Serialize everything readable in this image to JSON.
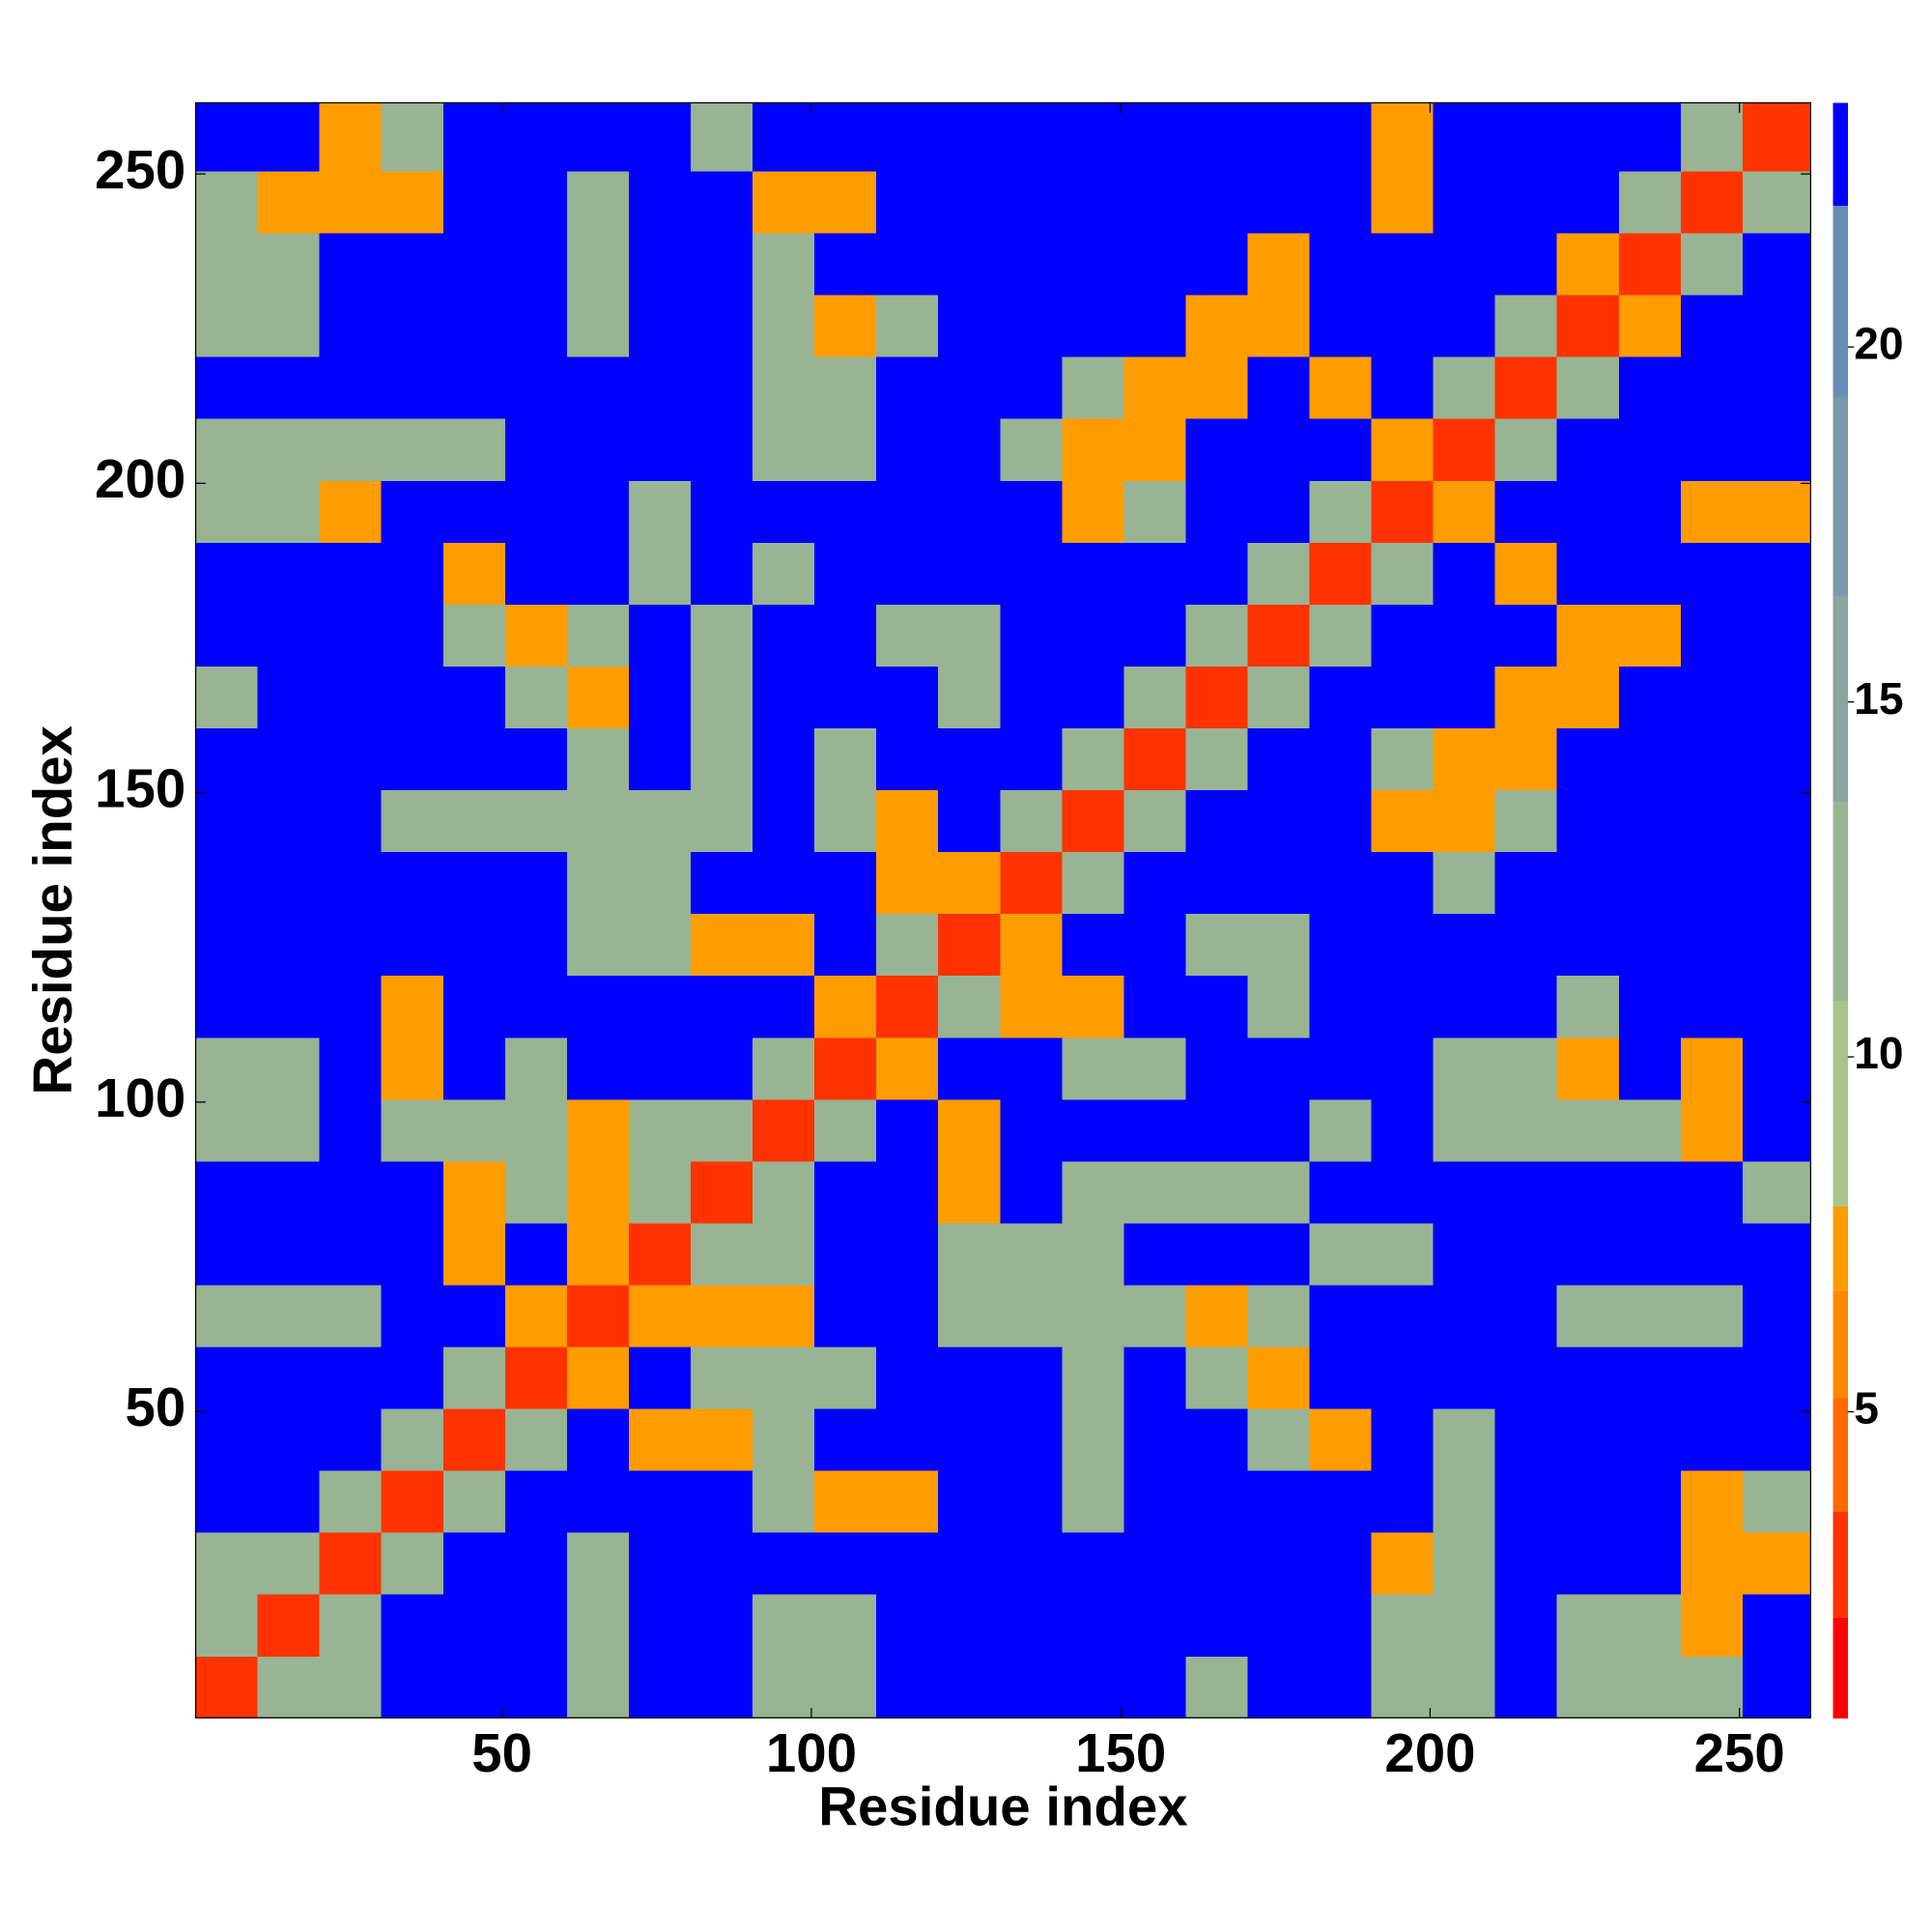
{
  "chart_data": {
    "type": "heatmap",
    "x_label": "Residue index",
    "y_label": "Residue index",
    "xbins": [
      0.5,
      10.5,
      20.5,
      30.5,
      40.5,
      50.5,
      60.5,
      70.5,
      80.5,
      90.5,
      100.5,
      110.5,
      120.5,
      130.5,
      140.5,
      150.5,
      160.5,
      170.5,
      180.5,
      190.5,
      200.5,
      210.5,
      220.5,
      230.5,
      240.5,
      250.5,
      261.5
    ],
    "ybins": [
      0.5,
      10.5,
      20.5,
      30.5,
      40.5,
      50.5,
      60.5,
      70.5,
      80.5,
      90.5,
      100.5,
      110.5,
      120.5,
      130.5,
      140.5,
      150.5,
      160.5,
      170.5,
      180.5,
      190.5,
      200.5,
      210.5,
      220.5,
      230.5,
      240.5,
      250.5,
      261.5
    ],
    "xlim": [
      0.5,
      261.5
    ],
    "ylim": [
      0.5,
      261.5
    ],
    "xticks": [
      50,
      100,
      150,
      200,
      250
    ],
    "yticks": [
      50,
      100,
      150,
      200,
      250
    ],
    "clim": [
      0.69,
      23.44
    ],
    "cticks": [
      5,
      10,
      15,
      20
    ],
    "colorscale": {
      "levels": [
        0.69,
        2.1,
        3.6,
        5.2,
        6.7,
        7.9,
        10.8,
        13.6,
        16.5,
        19.3,
        22.0,
        23.44
      ],
      "colors": [
        "#ff0000",
        "#ff3300",
        "#ff6a00",
        "#ff8800",
        "#ff9d00",
        "#a9c48a",
        "#98b493",
        "#8aa6a0",
        "#7b98ad",
        "#6a8cb8",
        "#0000ff"
      ]
    },
    "values": [
      [
        3,
        11,
        12,
        23,
        23,
        23,
        12,
        23,
        23,
        12,
        12,
        23,
        23,
        23,
        23,
        23,
        12,
        23,
        23,
        12,
        12,
        23,
        12,
        12,
        12,
        23
      ],
      [
        11,
        3,
        11,
        23,
        23,
        23,
        12,
        23,
        23,
        12,
        12,
        23,
        23,
        23,
        23,
        23,
        23,
        23,
        23,
        12,
        12,
        23,
        12,
        12,
        7,
        23
      ],
      [
        12,
        11,
        3,
        11,
        23,
        23,
        12,
        23,
        23,
        23,
        23,
        23,
        23,
        23,
        23,
        23,
        23,
        23,
        23,
        7,
        12,
        23,
        23,
        23,
        7,
        7
      ],
      [
        23,
        23,
        11,
        3,
        11,
        23,
        23,
        23,
        23,
        12,
        7,
        7,
        23,
        23,
        12,
        23,
        23,
        23,
        23,
        23,
        12,
        23,
        23,
        23,
        7,
        12
      ],
      [
        23,
        23,
        23,
        11,
        3,
        11,
        23,
        7,
        7,
        12,
        23,
        23,
        23,
        23,
        12,
        23,
        23,
        12,
        7,
        23,
        12,
        23,
        23,
        23,
        23,
        23
      ],
      [
        23,
        23,
        23,
        23,
        11,
        3,
        7,
        23,
        12,
        12,
        12,
        23,
        23,
        23,
        12,
        23,
        12,
        7,
        23,
        23,
        23,
        23,
        23,
        23,
        23,
        23
      ],
      [
        12,
        12,
        12,
        23,
        23,
        7,
        3,
        7,
        7,
        7,
        23,
        23,
        12,
        12,
        12,
        12,
        7,
        12,
        23,
        23,
        23,
        23,
        12,
        12,
        12,
        23
      ],
      [
        23,
        23,
        23,
        23,
        7,
        23,
        7,
        3,
        11,
        12,
        23,
        23,
        12,
        12,
        12,
        23,
        23,
        23,
        12,
        12,
        23,
        23,
        23,
        23,
        23,
        23
      ],
      [
        23,
        23,
        23,
        23,
        7,
        12,
        7,
        11,
        3,
        11,
        23,
        23,
        7,
        23,
        12,
        12,
        12,
        12,
        23,
        23,
        23,
        23,
        23,
        23,
        23,
        12
      ],
      [
        12,
        12,
        23,
        12,
        12,
        12,
        7,
        12,
        11,
        3,
        11,
        23,
        7,
        23,
        23,
        23,
        23,
        23,
        12,
        23,
        12,
        12,
        12,
        12,
        7,
        23
      ],
      [
        12,
        12,
        23,
        7,
        23,
        12,
        23,
        23,
        23,
        11,
        3,
        7,
        23,
        23,
        12,
        12,
        23,
        23,
        23,
        23,
        12,
        12,
        7,
        23,
        7,
        23
      ],
      [
        23,
        23,
        23,
        7,
        23,
        23,
        23,
        23,
        23,
        23,
        7,
        3,
        11,
        7,
        7,
        23,
        23,
        12,
        23,
        23,
        23,
        23,
        12,
        23,
        23,
        23
      ],
      [
        23,
        23,
        23,
        23,
        23,
        23,
        12,
        12,
        7,
        7,
        23,
        11,
        3,
        7,
        23,
        23,
        12,
        12,
        23,
        23,
        23,
        23,
        23,
        23,
        23,
        23
      ],
      [
        23,
        23,
        23,
        23,
        23,
        23,
        12,
        12,
        23,
        23,
        23,
        7,
        7,
        3,
        11,
        23,
        23,
        23,
        23,
        23,
        12,
        23,
        23,
        23,
        23,
        23
      ],
      [
        23,
        23,
        23,
        12,
        12,
        12,
        12,
        12,
        12,
        23,
        12,
        7,
        23,
        11,
        3,
        11,
        23,
        23,
        23,
        7,
        7,
        12,
        23,
        23,
        23,
        23
      ],
      [
        23,
        23,
        23,
        23,
        23,
        23,
        12,
        23,
        12,
        23,
        12,
        23,
        23,
        23,
        11,
        3,
        11,
        23,
        23,
        12,
        7,
        7,
        23,
        23,
        23,
        23
      ],
      [
        12,
        23,
        23,
        23,
        23,
        12,
        7,
        23,
        12,
        23,
        23,
        23,
        12,
        23,
        23,
        11,
        3,
        11,
        23,
        23,
        23,
        7,
        7,
        23,
        23,
        23
      ],
      [
        23,
        23,
        23,
        23,
        12,
        7,
        12,
        23,
        12,
        23,
        23,
        12,
        12,
        23,
        23,
        23,
        11,
        3,
        11,
        23,
        23,
        23,
        7,
        7,
        23,
        23
      ],
      [
        23,
        23,
        23,
        23,
        7,
        23,
        23,
        12,
        23,
        12,
        23,
        23,
        23,
        23,
        23,
        23,
        23,
        11,
        3,
        11,
        23,
        7,
        23,
        23,
        23,
        23
      ],
      [
        12,
        12,
        7,
        23,
        23,
        23,
        23,
        12,
        23,
        23,
        23,
        23,
        23,
        23,
        7,
        12,
        23,
        23,
        11,
        3,
        7,
        23,
        23,
        23,
        7,
        7
      ],
      [
        12,
        12,
        12,
        12,
        12,
        23,
        23,
        23,
        23,
        12,
        12,
        23,
        23,
        12,
        7,
        7,
        23,
        23,
        23,
        7,
        3,
        11,
        23,
        23,
        23,
        23
      ],
      [
        23,
        23,
        23,
        23,
        23,
        23,
        23,
        23,
        23,
        12,
        12,
        23,
        23,
        23,
        12,
        7,
        7,
        23,
        7,
        23,
        11,
        3,
        11,
        23,
        23,
        23
      ],
      [
        12,
        12,
        23,
        23,
        23,
        23,
        12,
        23,
        23,
        12,
        7,
        12,
        23,
        23,
        23,
        23,
        7,
        7,
        23,
        23,
        23,
        11,
        3,
        7,
        23,
        23
      ],
      [
        12,
        12,
        23,
        23,
        23,
        23,
        12,
        23,
        23,
        12,
        23,
        23,
        23,
        23,
        23,
        23,
        23,
        7,
        23,
        23,
        23,
        23,
        7,
        3,
        11,
        23
      ],
      [
        12,
        7,
        7,
        7,
        23,
        23,
        12,
        23,
        23,
        7,
        7,
        23,
        23,
        23,
        23,
        23,
        23,
        23,
        23,
        7,
        23,
        23,
        23,
        11,
        3,
        11
      ],
      [
        23,
        23,
        7,
        12,
        23,
        23,
        23,
        23,
        12,
        23,
        23,
        23,
        23,
        23,
        23,
        23,
        23,
        23,
        23,
        7,
        23,
        23,
        23,
        23,
        11,
        3
      ]
    ]
  }
}
